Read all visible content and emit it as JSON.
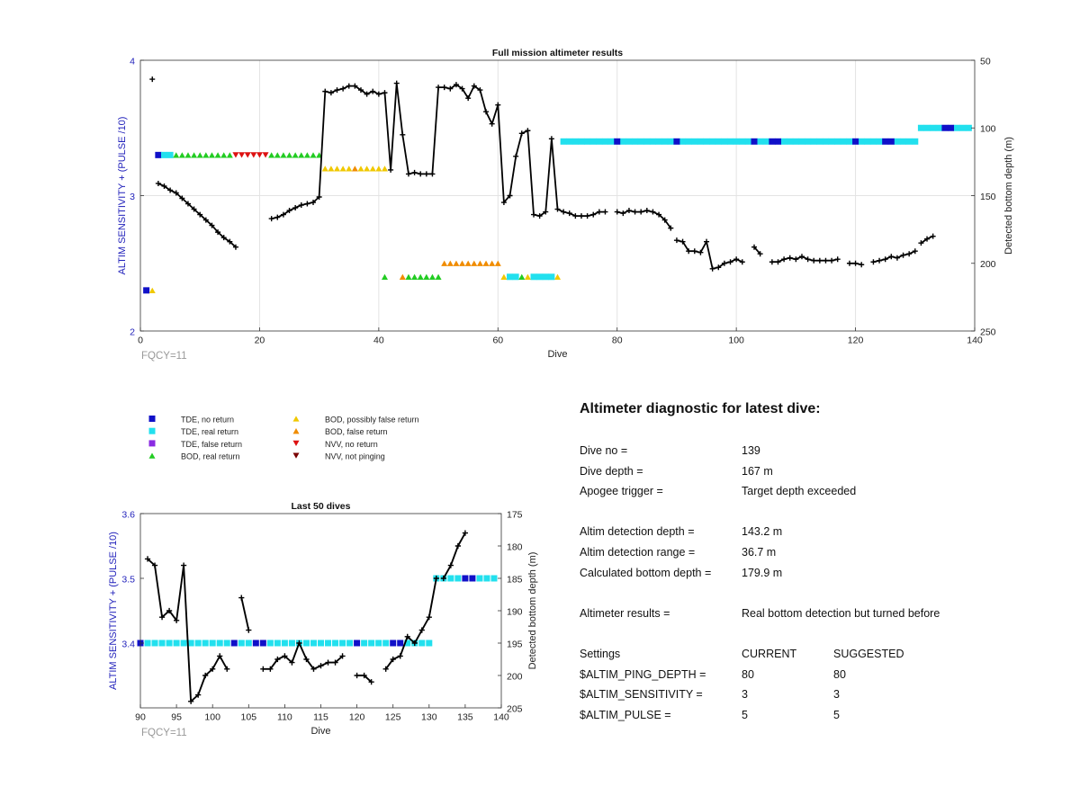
{
  "colors": {
    "tde_no_return": "#1010c8",
    "tde_real_return": "#22e0ee",
    "tde_false_return": "#8a2be2",
    "bod_real_return": "#22cc22",
    "bod_possibly_false": "#f0c800",
    "bod_false_return": "#f08c00",
    "nvv_no_return": "#dd1111",
    "nvv_not_pinging": "#7a0000",
    "left_axis": "#2222bb",
    "fqcy": "#999999"
  },
  "chart_data": [
    {
      "type": "scatter",
      "title": "Full mission altimeter results",
      "xlabel": "Dive",
      "ylabel": "ALTIM SENSITIVITY + (PULSE /10)",
      "y2label": "Detected bottom depth (m)",
      "xlim": [
        0,
        140
      ],
      "ylim": [
        2,
        4
      ],
      "y2lim": [
        50,
        250
      ],
      "y2_reversed": true,
      "xticks": [
        0,
        20,
        40,
        60,
        80,
        100,
        120,
        140
      ],
      "yticks": [
        2,
        3,
        4
      ],
      "y2ticks": [
        50,
        100,
        150,
        200,
        250
      ],
      "grid": true,
      "annotation": "FQCY=11",
      "markers": [
        {
          "cat": "tde_no_return",
          "y": 2.3,
          "x": [
            1
          ]
        },
        {
          "cat": "bod_possibly_false",
          "y": 2.3,
          "x": [
            2
          ]
        },
        {
          "cat": "tde_no_return",
          "y": 3.3,
          "x": [
            3
          ]
        },
        {
          "cat": "tde_real_return",
          "y": 3.3,
          "x": [
            4,
            5
          ]
        },
        {
          "cat": "bod_real_return",
          "y": 3.3,
          "x": [
            6,
            7,
            8,
            9,
            10,
            11,
            12,
            13,
            14,
            15
          ]
        },
        {
          "cat": "nvv_no_return",
          "y": 3.3,
          "x": [
            16,
            17,
            18,
            19,
            20,
            21
          ]
        },
        {
          "cat": "bod_real_return",
          "y": 3.3,
          "x": [
            22,
            23,
            24,
            25,
            26,
            27,
            28,
            29,
            30
          ]
        },
        {
          "cat": "bod_possibly_false",
          "y": 3.2,
          "x": [
            31,
            32,
            33,
            34,
            35,
            37,
            38,
            39,
            40,
            41
          ]
        },
        {
          "cat": "bod_false_return",
          "y": 3.2,
          "x": [
            36
          ]
        },
        {
          "cat": "bod_real_return",
          "y": 2.4,
          "x": [
            41,
            45,
            46,
            47,
            48,
            49,
            50
          ]
        },
        {
          "cat": "bod_false_return",
          "y": 2.4,
          "x": [
            44
          ]
        },
        {
          "cat": "bod_false_return",
          "y": 2.5,
          "x": [
            51,
            52,
            53,
            54,
            55,
            56,
            57,
            58,
            59,
            60
          ]
        },
        {
          "cat": "bod_possibly_false",
          "y": 2.4,
          "x": [
            61,
            65,
            70
          ]
        },
        {
          "cat": "tde_real_return",
          "y": 2.4,
          "x": [
            62,
            63,
            66,
            67,
            68,
            69
          ]
        },
        {
          "cat": "bod_real_return",
          "y": 2.4,
          "x": [
            64
          ]
        },
        {
          "cat": "tde_real_return",
          "y": 3.4,
          "x": [
            71,
            72,
            73,
            74,
            75,
            76,
            77,
            78,
            79,
            81,
            82,
            83,
            84,
            85,
            86,
            87,
            88,
            89,
            91,
            92,
            93,
            94,
            95,
            96,
            97,
            98,
            99,
            100,
            101,
            102,
            104,
            105,
            108,
            109,
            110,
            111,
            112,
            113,
            114,
            115,
            116,
            117,
            118,
            119,
            121,
            122,
            123,
            124,
            127,
            128,
            129,
            130
          ]
        },
        {
          "cat": "tde_no_return",
          "y": 3.4,
          "x": [
            80,
            90,
            103,
            106,
            107,
            120,
            125,
            126
          ]
        },
        {
          "cat": "tde_real_return",
          "y": 3.5,
          "x": [
            131,
            132,
            133,
            134,
            137,
            138,
            139
          ]
        },
        {
          "cat": "tde_no_return",
          "y": 3.5,
          "x": [
            135,
            136
          ]
        }
      ],
      "depth_segments": [
        [
          [
            2,
            64
          ]
        ],
        [
          [
            3,
            141
          ],
          [
            4,
            143
          ],
          [
            5,
            146
          ],
          [
            6,
            148
          ],
          [
            7,
            152
          ],
          [
            8,
            156
          ],
          [
            9,
            160
          ],
          [
            10,
            164
          ],
          [
            11,
            168
          ],
          [
            12,
            172
          ],
          [
            13,
            177
          ],
          [
            14,
            181
          ],
          [
            15,
            184
          ],
          [
            16,
            188
          ]
        ],
        [
          [
            22,
            167
          ],
          [
            23,
            166
          ],
          [
            24,
            164
          ],
          [
            25,
            161
          ],
          [
            26,
            159
          ],
          [
            27,
            157
          ],
          [
            28,
            156
          ],
          [
            29,
            155
          ],
          [
            30,
            151
          ],
          [
            31,
            73
          ],
          [
            32,
            74
          ],
          [
            33,
            72
          ],
          [
            34,
            71
          ],
          [
            35,
            69
          ],
          [
            36,
            69
          ],
          [
            37,
            72
          ],
          [
            38,
            75
          ],
          [
            39,
            73
          ],
          [
            40,
            75
          ],
          [
            41,
            74
          ],
          [
            42,
            131
          ],
          [
            43,
            67
          ],
          [
            44,
            105
          ],
          [
            45,
            134
          ],
          [
            46,
            133
          ],
          [
            47,
            134
          ],
          [
            48,
            134
          ],
          [
            49,
            134
          ],
          [
            50,
            70
          ],
          [
            51,
            70
          ],
          [
            52,
            71
          ],
          [
            53,
            68
          ],
          [
            54,
            71
          ],
          [
            55,
            78
          ],
          [
            56,
            69
          ],
          [
            57,
            72
          ],
          [
            58,
            88
          ],
          [
            59,
            97
          ],
          [
            60,
            83
          ],
          [
            61,
            155
          ],
          [
            62,
            150
          ],
          [
            63,
            121
          ],
          [
            64,
            104
          ],
          [
            65,
            102
          ],
          [
            66,
            164
          ],
          [
            67,
            165
          ],
          [
            68,
            162
          ],
          [
            69,
            108
          ],
          [
            70,
            160
          ],
          [
            71,
            162
          ],
          [
            72,
            163
          ],
          [
            73,
            165
          ],
          [
            74,
            165
          ],
          [
            75,
            165
          ],
          [
            76,
            164
          ],
          [
            77,
            162
          ],
          [
            78,
            162
          ]
        ],
        [
          [
            80,
            162
          ],
          [
            81,
            163
          ],
          [
            82,
            161
          ],
          [
            83,
            162
          ],
          [
            84,
            162
          ],
          [
            85,
            161
          ],
          [
            86,
            162
          ],
          [
            87,
            164
          ],
          [
            88,
            168
          ],
          [
            89,
            174
          ]
        ],
        [
          [
            90,
            183
          ],
          [
            91,
            184
          ],
          [
            92,
            191
          ],
          [
            93,
            191
          ],
          [
            94,
            192
          ],
          [
            95,
            184
          ],
          [
            96,
            204
          ],
          [
            97,
            203
          ],
          [
            98,
            200
          ],
          [
            99,
            199
          ],
          [
            100,
            197
          ],
          [
            101,
            199
          ]
        ],
        [
          [
            103,
            188
          ],
          [
            104,
            193
          ]
        ],
        [
          [
            106,
            199
          ],
          [
            107,
            199
          ],
          [
            108,
            197
          ],
          [
            109,
            196
          ],
          [
            110,
            197
          ],
          [
            111,
            195
          ],
          [
            112,
            197
          ],
          [
            113,
            198
          ],
          [
            114,
            198
          ],
          [
            115,
            198
          ],
          [
            116,
            198
          ],
          [
            117,
            197
          ]
        ],
        [
          [
            119,
            200
          ],
          [
            120,
            200
          ],
          [
            121,
            201
          ]
        ],
        [
          [
            123,
            199
          ],
          [
            124,
            198
          ],
          [
            125,
            197
          ],
          [
            126,
            195
          ],
          [
            127,
            196
          ],
          [
            128,
            194
          ],
          [
            129,
            193
          ],
          [
            130,
            191
          ]
        ],
        [
          [
            131,
            185
          ],
          [
            132,
            182
          ],
          [
            133,
            180
          ]
        ]
      ]
    },
    {
      "type": "scatter",
      "title": "Last 50 dives",
      "xlabel": "Dive",
      "ylabel": "ALTIM SENSITIVITY + (PULSE /10)",
      "y2label": "Detected bottom depth (m)",
      "xlim": [
        90,
        140
      ],
      "ylim": [
        3.3,
        3.6
      ],
      "y2lim": [
        175,
        205
      ],
      "y2_reversed": true,
      "xticks": [
        90,
        95,
        100,
        105,
        110,
        115,
        120,
        125,
        130,
        135,
        140
      ],
      "yticks": [
        3.4,
        3.5,
        3.6
      ],
      "ytick_labels": [
        "3.4",
        "3.5",
        "3.6"
      ],
      "y2ticks": [
        175,
        180,
        185,
        190,
        195,
        200,
        205
      ],
      "grid": false,
      "annotation": "FQCY=11",
      "markers": [
        {
          "cat": "tde_real_return",
          "y": 3.4,
          "x": [
            91,
            92,
            93,
            94,
            95,
            96,
            97,
            98,
            99,
            100,
            101,
            102,
            104,
            105,
            108,
            109,
            110,
            111,
            112,
            113,
            114,
            115,
            116,
            117,
            118,
            119,
            121,
            122,
            123,
            124,
            127,
            128,
            129,
            130
          ]
        },
        {
          "cat": "tde_no_return",
          "y": 3.4,
          "x": [
            90,
            103,
            106,
            107,
            120,
            125,
            126
          ]
        },
        {
          "cat": "tde_real_return",
          "y": 3.5,
          "x": [
            131,
            132,
            133,
            134,
            137,
            138,
            139
          ]
        },
        {
          "cat": "tde_no_return",
          "y": 3.5,
          "x": [
            135,
            136
          ]
        }
      ],
      "depth_segments": [
        [
          [
            91,
            182
          ],
          [
            92,
            183
          ],
          [
            93,
            191
          ],
          [
            94,
            190
          ],
          [
            95,
            191.5
          ],
          [
            96,
            183
          ],
          [
            97,
            204
          ],
          [
            98,
            203
          ],
          [
            99,
            200
          ],
          [
            100,
            199
          ],
          [
            101,
            197
          ],
          [
            102,
            199
          ]
        ],
        [
          [
            104,
            188
          ],
          [
            105,
            193
          ]
        ],
        [
          [
            107,
            199
          ],
          [
            108,
            199
          ],
          [
            109,
            197.5
          ],
          [
            110,
            197
          ],
          [
            111,
            198
          ],
          [
            112,
            195
          ],
          [
            113,
            197.5
          ],
          [
            114,
            199
          ],
          [
            115,
            198.5
          ],
          [
            116,
            198
          ],
          [
            117,
            198
          ],
          [
            118,
            197
          ]
        ],
        [
          [
            120,
            200
          ],
          [
            121,
            200
          ],
          [
            122,
            201
          ]
        ],
        [
          [
            124,
            199
          ],
          [
            125,
            197.5
          ],
          [
            126,
            197
          ],
          [
            127,
            194
          ],
          [
            128,
            195
          ],
          [
            129,
            193
          ],
          [
            130,
            191
          ],
          [
            131,
            185
          ]
        ],
        [
          [
            132,
            185
          ],
          [
            133,
            183
          ],
          [
            134,
            180
          ],
          [
            135,
            178
          ]
        ]
      ]
    }
  ],
  "legend": [
    {
      "cat": "tde_no_return",
      "label": "TDE, no return",
      "shape": "square"
    },
    {
      "cat": "tde_real_return",
      "label": "TDE, real return",
      "shape": "square"
    },
    {
      "cat": "tde_false_return",
      "label": "TDE, false return",
      "shape": "square"
    },
    {
      "cat": "bod_real_return",
      "label": "BOD, real return",
      "shape": "triangle-up"
    },
    {
      "cat": "bod_possibly_false",
      "label": "BOD, possibly false return",
      "shape": "triangle-up"
    },
    {
      "cat": "bod_false_return",
      "label": "BOD, false return",
      "shape": "triangle-up"
    },
    {
      "cat": "nvv_no_return",
      "label": "NVV, no return",
      "shape": "triangle-down"
    },
    {
      "cat": "nvv_not_pinging",
      "label": "NVV, not pinging",
      "shape": "triangle-down"
    }
  ],
  "diagnostic": {
    "title": "Altimeter diagnostic for latest dive:",
    "dive_no": {
      "label": "Dive no =",
      "value": "139"
    },
    "dive_depth": {
      "label": "Dive depth =",
      "value": "167 m"
    },
    "apogee_trigger": {
      "label": "Apogee trigger =",
      "value": "Target depth exceeded"
    },
    "detection_depth": {
      "label": "Altim detection depth =",
      "value": "143.2 m"
    },
    "detection_range": {
      "label": "Altim detection range =",
      "value": "36.7 m"
    },
    "bottom_depth": {
      "label": "Calculated bottom depth =",
      "value": "179.9 m"
    },
    "results": {
      "label": "Altimeter results =",
      "value": "Real bottom detection but turned before"
    },
    "settings": {
      "label": "Settings",
      "current": "CURRENT",
      "suggested": "SUGGESTED"
    },
    "ping_depth": {
      "label": "$ALTIM_PING_DEPTH =",
      "current": "80",
      "suggested": "80"
    },
    "sensitivity": {
      "label": "$ALTIM_SENSITIVITY =",
      "current": "3",
      "suggested": "3"
    },
    "pulse": {
      "label": "$ALTIM_PULSE =",
      "current": "5",
      "suggested": "5"
    }
  }
}
